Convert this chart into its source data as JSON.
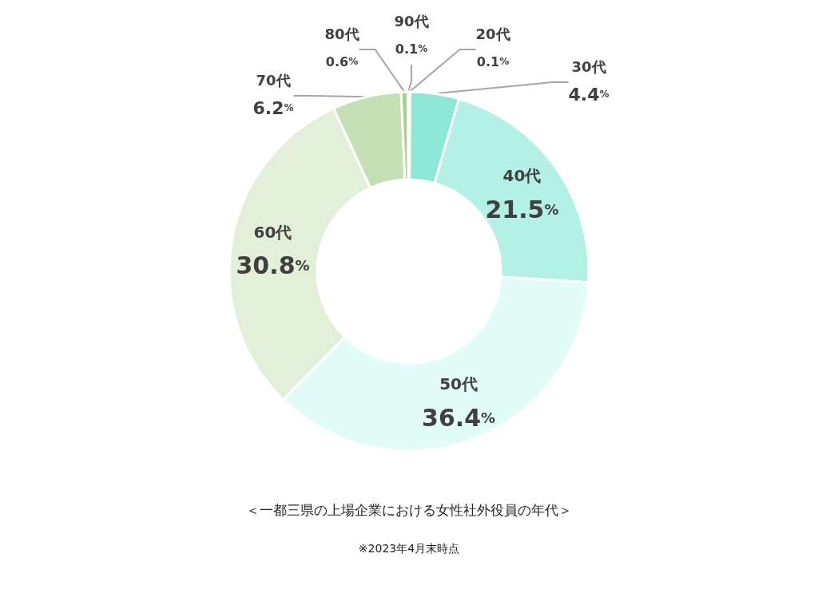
{
  "chart_data": {
    "type": "donut",
    "categories": [
      "20代",
      "30代",
      "40代",
      "50代",
      "60代",
      "70代",
      "80代",
      "90代"
    ],
    "values": [
      0.1,
      4.4,
      21.5,
      36.4,
      30.8,
      6.2,
      0.6,
      0.1
    ],
    "value_labels": [
      "0.1%",
      "4.4%",
      "21.5%",
      "36.4%",
      "30.8%",
      "6.2%",
      "0.6%",
      "0.1%"
    ],
    "colors": [
      "#5fdcc6",
      "#8ee6d6",
      "#b3f0e6",
      "#e2fdf8",
      "#e2efd9",
      "#c5e0b4",
      "#a9d18e",
      "#c5e0b4"
    ],
    "data_labels": true,
    "legend": false,
    "annotations": [
      "＜一都三県の上場企業における女性社外役員の年代＞",
      "※2023年4月末時点"
    ]
  }
}
